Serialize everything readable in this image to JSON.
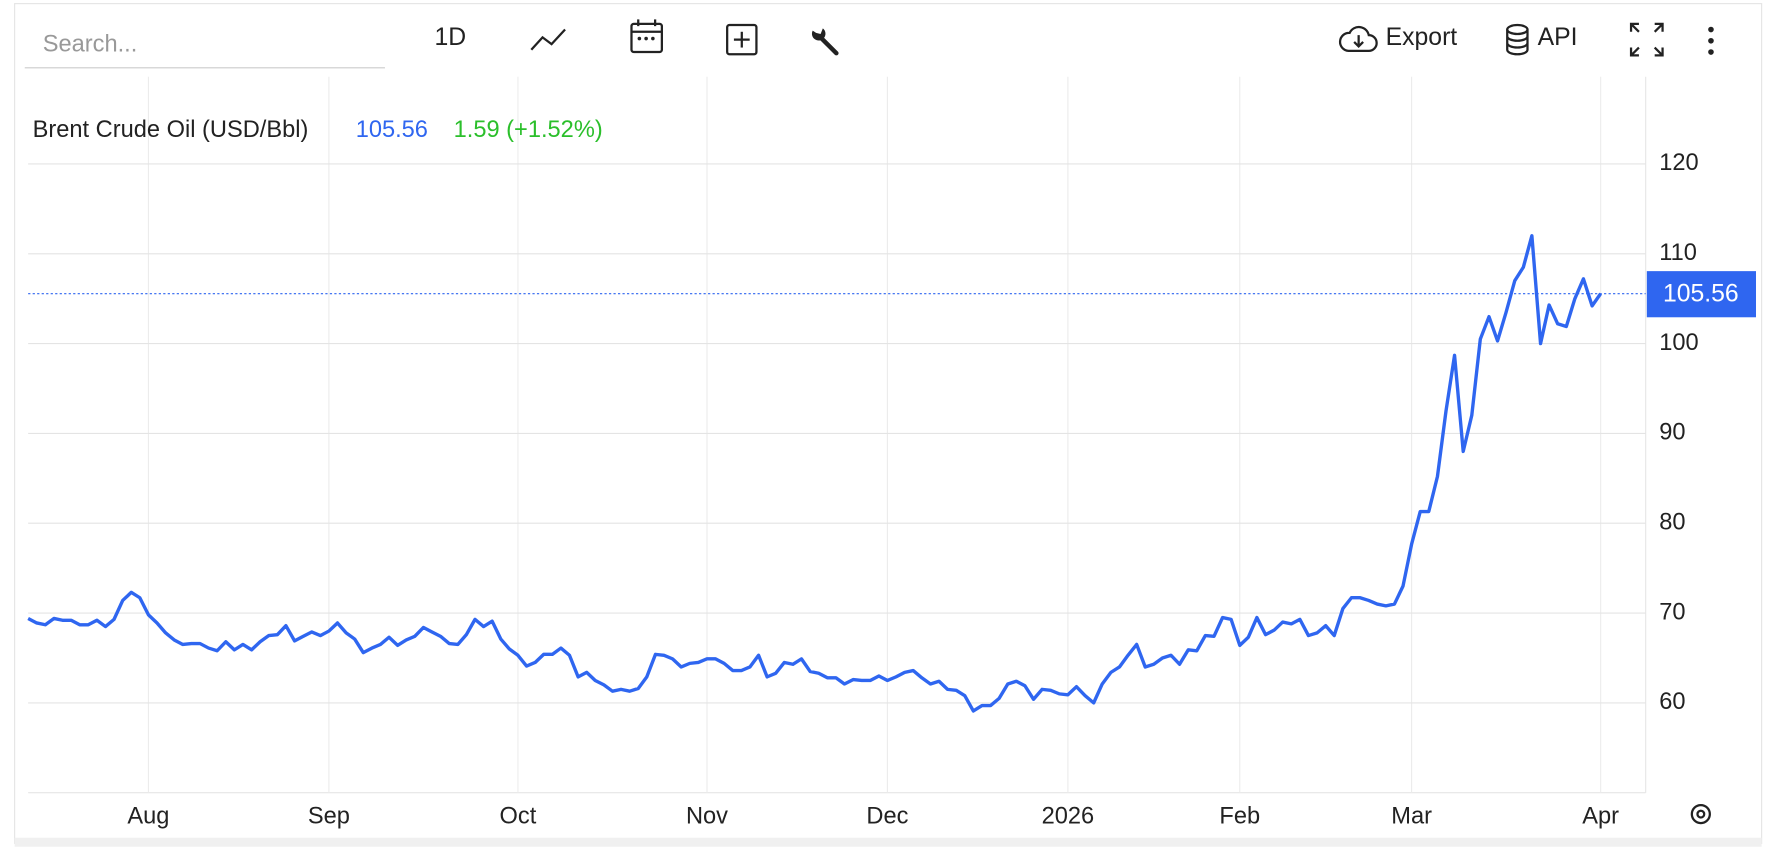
{
  "toolbar": {
    "search_placeholder": "Search...",
    "interval": "1D",
    "export": "Export",
    "api": "API"
  },
  "chart_data": {
    "type": "line",
    "change_label": "1.59 (+1.52%)",
    "categories": [
      null,
      null,
      null,
      null,
      null,
      null,
      null,
      null,
      null,
      null,
      null,
      null,
      null,
      null,
      "Aug",
      null,
      null,
      null,
      null,
      null,
      null,
      null,
      null,
      null,
      null,
      null,
      null,
      null,
      null,
      null,
      null,
      null,
      null,
      null,
      null,
      "Sep",
      null,
      null,
      null,
      null,
      null,
      null,
      null,
      null,
      null,
      null,
      null,
      null,
      null,
      null,
      null,
      null,
      null,
      null,
      null,
      null,
      null,
      "Oct",
      null,
      null,
      null,
      null,
      null,
      null,
      null,
      null,
      null,
      null,
      null,
      null,
      null,
      null,
      null,
      null,
      null,
      null,
      null,
      null,
      null,
      "Nov",
      null,
      null,
      null,
      null,
      null,
      null,
      null,
      null,
      null,
      null,
      null,
      null,
      null,
      null,
      null,
      null,
      null,
      null,
      null,
      null,
      "Dec",
      null,
      null,
      null,
      null,
      null,
      null,
      null,
      null,
      null,
      null,
      null,
      null,
      null,
      null,
      null,
      null,
      null,
      null,
      null,
      null,
      "2026",
      null,
      null,
      null,
      null,
      null,
      null,
      null,
      null,
      null,
      null,
      null,
      null,
      null,
      null,
      null,
      null,
      null,
      null,
      null,
      "Feb",
      null,
      null,
      null,
      null,
      null,
      null,
      null,
      null,
      null,
      null,
      null,
      null,
      null,
      null,
      null,
      null,
      null,
      null,
      null,
      "Mar",
      null,
      null,
      null,
      null,
      null,
      null,
      null,
      null,
      null,
      null,
      null,
      null,
      null,
      null,
      null,
      null,
      null,
      null,
      null,
      null,
      null,
      "Apr"
    ],
    "series": [
      {
        "name": "Brent Crude Oil (USD/Bbl)",
        "color": "#2f66f0",
        "values": [
          69.4,
          68.9,
          68.7,
          69.4,
          69.2,
          69.2,
          68.7,
          68.7,
          69.2,
          68.5,
          69.3,
          71.4,
          72.3,
          71.7,
          69.8,
          68.9,
          67.8,
          67.0,
          66.5,
          66.6,
          66.6,
          66.1,
          65.8,
          66.8,
          65.9,
          66.5,
          65.9,
          66.8,
          67.5,
          67.6,
          68.6,
          66.9,
          67.4,
          67.9,
          67.5,
          68.0,
          68.9,
          67.8,
          67.1,
          65.6,
          66.1,
          66.5,
          67.3,
          66.4,
          67.0,
          67.4,
          68.4,
          67.9,
          67.4,
          66.6,
          66.5,
          67.6,
          69.3,
          68.5,
          69.1,
          67.1,
          66.0,
          65.3,
          64.1,
          64.5,
          65.4,
          65.4,
          66.1,
          65.3,
          62.9,
          63.4,
          62.5,
          62.0,
          61.3,
          61.5,
          61.3,
          61.6,
          62.9,
          65.4,
          65.3,
          64.9,
          64.0,
          64.4,
          64.5,
          64.9,
          64.9,
          64.4,
          63.6,
          63.6,
          64.0,
          65.3,
          62.9,
          63.3,
          64.5,
          64.3,
          64.9,
          63.5,
          63.3,
          62.8,
          62.8,
          62.1,
          62.6,
          62.5,
          62.5,
          63.0,
          62.5,
          62.9,
          63.4,
          63.6,
          62.8,
          62.1,
          62.4,
          61.5,
          61.4,
          60.8,
          59.1,
          59.7,
          59.7,
          60.5,
          62.1,
          62.4,
          61.9,
          60.4,
          61.5,
          61.4,
          61.0,
          60.9,
          61.8,
          60.8,
          60.0,
          62.1,
          63.4,
          64.0,
          65.3,
          66.5,
          64.0,
          64.3,
          65.0,
          65.3,
          64.3,
          65.9,
          65.8,
          67.5,
          67.4,
          69.5,
          69.3,
          66.4,
          67.3,
          69.5,
          67.6,
          68.1,
          69.0,
          68.8,
          69.3,
          67.5,
          67.8,
          68.6,
          67.5,
          70.5,
          71.7,
          71.7,
          71.4,
          71.0,
          70.8,
          71.0,
          73.0,
          77.7,
          81.3,
          81.3,
          85.2,
          92.5,
          98.7,
          88.0,
          92.0,
          100.5,
          103.0,
          100.3,
          103.5,
          107.0,
          108.5,
          112.0,
          100.0,
          104.3,
          102.2,
          101.9,
          105.0,
          107.2,
          104.2,
          105.56
        ]
      }
    ],
    "ylim": [
      50,
      129.7
    ],
    "yticks": [
      60,
      70,
      80,
      90,
      100,
      110,
      120
    ],
    "grid": true,
    "axis_side": "right"
  }
}
